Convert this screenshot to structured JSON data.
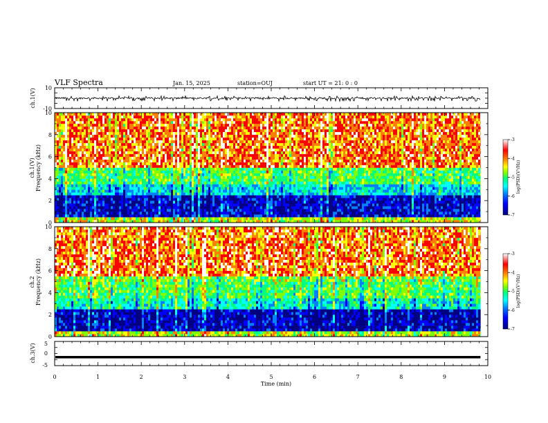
{
  "header": {
    "title": "VLF Spectra",
    "date": "Jan. 15, 2025",
    "station": "station=OUJ",
    "start": "start UT =  21: 0  : 0"
  },
  "colors": {
    "background": "#ffffff",
    "axis": "#000000",
    "colormap": [
      "#000080",
      "#0000ff",
      "#0080ff",
      "#00ffff",
      "#00ff80",
      "#80ff00",
      "#ffff00",
      "#ff8000",
      "#ff0000",
      "#ffffff"
    ]
  },
  "chart_data": [
    {
      "type": "line",
      "panel": "waveform-ch1",
      "ylabel": "ch.1(V)",
      "ylim": [
        -10,
        10
      ],
      "yticks": [
        "10",
        "-10"
      ],
      "series": [
        {
          "trace": "noisy waveform, mean ~0 V, spikes to ~-2 V"
        }
      ]
    },
    {
      "type": "heatmap",
      "panel": "spectrogram-ch1",
      "ylabel": "ch.1 Frequency (kHz)",
      "ylim": [
        0,
        10
      ],
      "yticks": [
        "0",
        "2",
        "4",
        "6",
        "8",
        "10"
      ],
      "colorbar": {
        "label": "log(PSD)(V²/Hz)",
        "range": [
          -7,
          -3
        ],
        "ticks": [
          "-3",
          "-4",
          "-5",
          "-6",
          "-7"
        ]
      },
      "levels_by_frequency": [
        {
          "band": "0-0.5 kHz",
          "logPSD": -4.3
        },
        {
          "band": "0.5-2.5 kHz",
          "logPSD": -6.5
        },
        {
          "band": "2.5-3.5 kHz",
          "logPSD": -5.5
        },
        {
          "band": "3.5-5 kHz",
          "logPSD": -4.8
        },
        {
          "band": "5-10 kHz",
          "logPSD": -3.6
        }
      ]
    },
    {
      "type": "heatmap",
      "panel": "spectrogram-ch2",
      "ylabel": "ch.2 Frequency (kHz)",
      "ylim": [
        0,
        10
      ],
      "yticks": [
        "0",
        "2",
        "4",
        "6",
        "8",
        "10"
      ],
      "colorbar": {
        "label": "log(PSD)(V²/Hz)",
        "range": [
          -7,
          -3
        ],
        "ticks": [
          "-3",
          "-4",
          "-5",
          "-6",
          "-7"
        ]
      },
      "levels_by_frequency": [
        {
          "band": "0-0.5 kHz",
          "logPSD": -4.3
        },
        {
          "band": "0.5-2.5 kHz",
          "logPSD": -6.6
        },
        {
          "band": "2.5-3.5 kHz",
          "logPSD": -5.3
        },
        {
          "band": "3.5-5.5 kHz",
          "logPSD": -4.8
        },
        {
          "band": "5.5-10 kHz",
          "logPSD": -3.6
        }
      ]
    },
    {
      "type": "line",
      "panel": "waveform-ch3",
      "ylabel": "ch.3(V)",
      "ylim": [
        -5,
        5
      ],
      "yticks": [
        "5",
        "0",
        "-5"
      ],
      "series": [
        {
          "trace": "constant",
          "value": -1.5
        }
      ]
    }
  ],
  "xaxis": {
    "label": "Time (min)",
    "range": [
      0,
      10
    ],
    "ticks": [
      "0",
      "1",
      "2",
      "3",
      "4",
      "5",
      "6",
      "7",
      "8",
      "9",
      "10"
    ],
    "data_end": 9.83
  }
}
